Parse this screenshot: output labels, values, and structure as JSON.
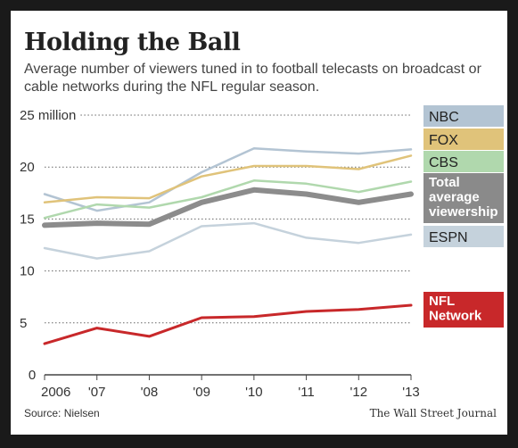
{
  "title": "Holding the Ball",
  "subtitle": "Average number of viewers tuned in to football telecasts on broadcast or cable networks during the NFL regular season.",
  "source": "Source: Nielsen",
  "credit": "The Wall Street Journal",
  "chart_data": {
    "type": "line",
    "x": [
      "2006",
      "'07",
      "'08",
      "'09",
      "'10",
      "'11",
      "'12",
      "'13"
    ],
    "ylim": [
      0,
      25
    ],
    "yticks": [
      {
        "value": 0,
        "label": "0"
      },
      {
        "value": 5,
        "label": "5"
      },
      {
        "value": 10,
        "label": "10"
      },
      {
        "value": 15,
        "label": "15"
      },
      {
        "value": 20,
        "label": "20"
      },
      {
        "value": 25,
        "label": "25 million"
      }
    ],
    "grid": true,
    "legend": "right",
    "series": [
      {
        "name": "NBC",
        "color": "#b3c4d3",
        "values": [
          17.4,
          15.8,
          16.6,
          19.5,
          21.8,
          21.5,
          21.3,
          21.7
        ]
      },
      {
        "name": "FOX",
        "color": "#e0c37a",
        "values": [
          16.6,
          17.1,
          17.0,
          19.1,
          20.1,
          20.1,
          19.8,
          21.1
        ]
      },
      {
        "name": "CBS",
        "color": "#b0d8ad",
        "values": [
          15.1,
          16.4,
          16.1,
          17.1,
          18.7,
          18.4,
          17.6,
          18.6
        ]
      },
      {
        "name": "Total average viewership",
        "label_lines": [
          "Total",
          "average",
          "viewership"
        ],
        "color": "#8c8c8c",
        "values": [
          14.4,
          14.6,
          14.5,
          16.6,
          17.8,
          17.4,
          16.6,
          17.4
        ]
      },
      {
        "name": "ESPN",
        "color": "#c5d2dc",
        "values": [
          12.2,
          11.2,
          11.9,
          14.3,
          14.6,
          13.2,
          12.7,
          13.5
        ]
      },
      {
        "name": "NFL Network",
        "label_lines": [
          "NFL",
          "Network"
        ],
        "color": "#c8282a",
        "values": [
          3.0,
          4.5,
          3.7,
          5.5,
          5.6,
          6.1,
          6.3,
          6.7
        ]
      }
    ]
  }
}
